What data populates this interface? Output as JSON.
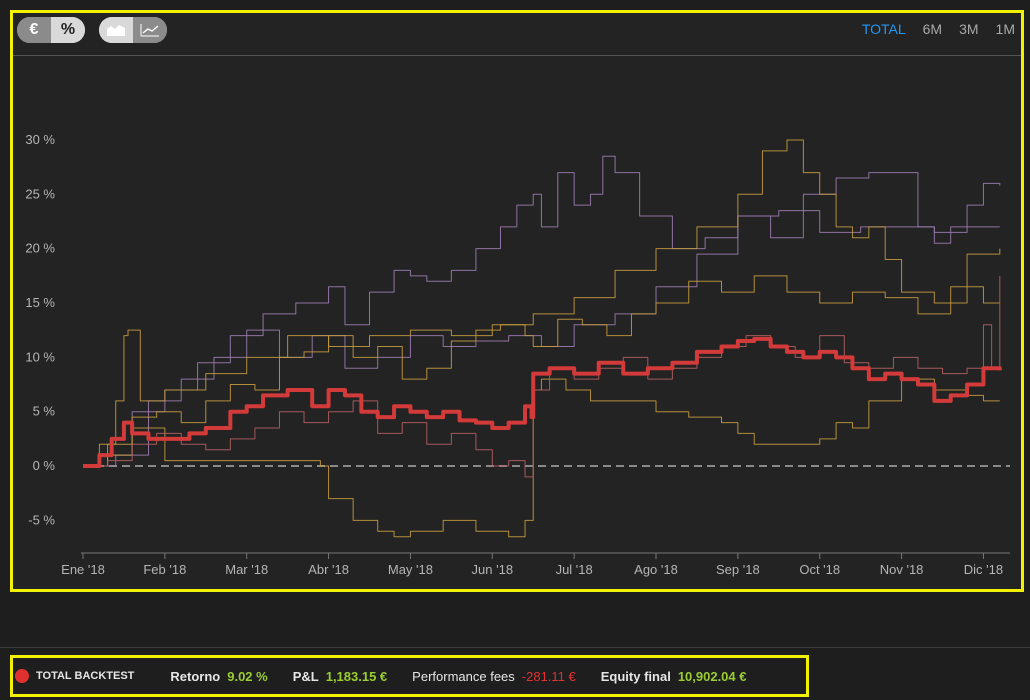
{
  "controls": {
    "unit_options": [
      "€",
      "%"
    ],
    "unit_selected": "%",
    "chart_type_icons": [
      "area-chart-icon",
      "line-chart-icon"
    ],
    "ranges": [
      "TOTAL",
      "6M",
      "3M",
      "1M"
    ],
    "range_selected": "TOTAL"
  },
  "colors": {
    "total": "#d33a3a",
    "purple": "#9c7bb0",
    "gold": "#c49a3e",
    "rose": "#b45f5f",
    "zero_line": "#8a8a8a",
    "accent": "#2196f3",
    "positive": "#9acd32",
    "negative": "#e03131"
  },
  "chart_data": {
    "type": "line",
    "y_unit": "%",
    "ylim": [
      -8,
      38
    ],
    "yticks": [
      -5,
      0,
      5,
      10,
      15,
      20,
      25,
      30
    ],
    "ytick_labels": [
      "-5 %",
      "0 %",
      "5 %",
      "10 %",
      "15 %",
      "20 %",
      "25 %",
      "30 %"
    ],
    "xlim": [
      0,
      11.3
    ],
    "xticks": [
      0,
      1,
      2,
      3,
      4,
      5,
      6,
      7,
      8,
      9,
      10,
      11
    ],
    "xtick_labels": [
      "Ene '18",
      "Feb '18",
      "Mar '18",
      "Abr '18",
      "May '18",
      "Jun '18",
      "Jul '18",
      "Ago '18",
      "Sep '18",
      "Oct '18",
      "Nov '18",
      "Dic '18"
    ],
    "grid": false,
    "series": [
      {
        "name": "TOTAL BACKTEST",
        "color": "#d33a3a",
        "width": 4,
        "x": [
          0,
          0.2,
          0.35,
          0.5,
          0.6,
          0.8,
          1.0,
          1.3,
          1.5,
          1.8,
          2.0,
          2.2,
          2.5,
          2.8,
          3.0,
          3.2,
          3.4,
          3.6,
          3.8,
          4.0,
          4.2,
          4.4,
          4.6,
          4.8,
          5.0,
          5.2,
          5.4,
          5.48,
          5.5,
          5.7,
          6.0,
          6.3,
          6.6,
          6.9,
          7.2,
          7.5,
          7.8,
          8.0,
          8.2,
          8.4,
          8.6,
          8.8,
          9.0,
          9.2,
          9.4,
          9.6,
          9.8,
          10.0,
          10.2,
          10.4,
          10.6,
          10.8,
          11.0,
          11.2
        ],
        "y": [
          0,
          1,
          2.5,
          4,
          3,
          2.5,
          2.5,
          3,
          3.5,
          5,
          5.5,
          6.5,
          7,
          5.5,
          7,
          6.5,
          5,
          4.5,
          5.5,
          5,
          4.5,
          5,
          4.2,
          4,
          3.5,
          4,
          5.5,
          4.5,
          8.5,
          9,
          8.5,
          9.5,
          8.5,
          9,
          9.5,
          10.5,
          11,
          11.5,
          11.7,
          11,
          10.5,
          10,
          10.5,
          10,
          9,
          8,
          8.5,
          8,
          7.5,
          6,
          6.5,
          7.5,
          9,
          8.8
        ]
      },
      {
        "name": "",
        "color": "#9c7bb0",
        "width": 1,
        "x": [
          0,
          0.3,
          0.6,
          1.0,
          1.4,
          1.8,
          2.2,
          2.6,
          3.0,
          3.2,
          3.5,
          3.8,
          4.0,
          4.2,
          4.5,
          4.8,
          5.1,
          5.3,
          5.5,
          5.6,
          5.8,
          6.0,
          6.2,
          6.35,
          6.5,
          6.8,
          7.2,
          7.6,
          8.0,
          8.4,
          8.8,
          9.2,
          9.6,
          10.0,
          10.2,
          10.4,
          10.6,
          10.8,
          11.0,
          11.2
        ],
        "y": [
          0,
          1,
          5,
          7,
          9.5,
          12,
          14,
          15,
          16.5,
          13,
          16,
          18,
          17.5,
          17,
          18,
          20,
          22,
          24,
          25,
          22,
          27,
          24,
          25,
          28.5,
          27,
          23,
          20,
          21,
          23,
          21,
          25,
          26.5,
          27,
          27,
          22,
          20.5,
          22,
          24,
          26,
          25.8
        ]
      },
      {
        "name": "",
        "color": "#9c7bb0",
        "width": 1,
        "x": [
          0,
          0.4,
          0.8,
          1.2,
          1.6,
          2.0,
          2.4,
          2.8,
          3.2,
          3.6,
          4.0,
          4.4,
          4.8,
          5.2,
          5.6,
          6.0,
          6.5,
          7.0,
          7.5,
          8.0,
          8.5,
          9.0,
          9.5,
          10.0,
          10.4,
          10.8,
          11.2
        ],
        "y": [
          0,
          1,
          6,
          8,
          10,
          12.5,
          10,
          12,
          9,
          10,
          12,
          11,
          11.5,
          12,
          11,
          13,
          14,
          16.5,
          19.5,
          23,
          23.5,
          21.5,
          22,
          22,
          21.5,
          22,
          22
        ]
      },
      {
        "name": "",
        "color": "#c49a3e",
        "width": 1,
        "x": [
          0,
          0.2,
          0.4,
          0.5,
          0.55,
          0.7,
          1.0,
          1.5,
          2.0,
          2.5,
          3.0,
          3.5,
          4.0,
          4.5,
          5.0,
          5.5,
          6.0,
          6.5,
          7.0,
          7.5,
          8.0,
          8.3,
          8.6,
          8.8,
          9.0,
          9.2,
          9.4,
          9.6,
          9.8,
          10.0,
          10.4,
          10.8,
          11.2
        ],
        "y": [
          0,
          2,
          6,
          12,
          12.5,
          6,
          7,
          8.5,
          10,
          12,
          11,
          12,
          12.5,
          12,
          13,
          14,
          15.5,
          18,
          20,
          22,
          25,
          29,
          30,
          27,
          25,
          22,
          21,
          22,
          19,
          16,
          15,
          19.5,
          20
        ]
      },
      {
        "name": "",
        "color": "#c49a3e",
        "width": 1,
        "x": [
          0,
          0.3,
          0.6,
          1.0,
          1.4,
          1.8,
          2.2,
          2.6,
          2.9,
          3.0,
          3.3,
          3.6,
          3.8,
          4.0,
          4.4,
          4.8,
          5.2,
          5.4,
          5.5,
          5.6,
          5.9,
          6.2,
          6.6,
          7.0,
          7.4,
          7.8,
          8.0,
          8.2,
          8.6,
          9.0,
          9.2,
          9.4,
          9.6,
          10.0,
          10.4,
          10.8,
          11.0,
          11.2
        ],
        "y": [
          0,
          1,
          3.5,
          0.5,
          0.5,
          0.5,
          0.5,
          0.5,
          0,
          -3,
          -5,
          -6,
          -6.5,
          -6,
          -5,
          -6,
          -6.5,
          -5,
          7,
          8,
          7,
          6,
          6,
          5,
          4.5,
          4,
          3,
          2,
          2,
          2.5,
          4,
          3.5,
          6,
          8,
          7,
          6.5,
          6,
          6
        ]
      },
      {
        "name": "",
        "color": "#c49a3e",
        "width": 1,
        "x": [
          0,
          0.3,
          0.6,
          0.9,
          1.2,
          1.5,
          1.8,
          2.1,
          2.4,
          2.7,
          3.0,
          3.3,
          3.6,
          3.9,
          4.2,
          4.5,
          4.8,
          5.1,
          5.4,
          5.5,
          5.8,
          6.1,
          6.4,
          6.7,
          7.0,
          7.4,
          7.8,
          8.2,
          8.6,
          9.0,
          9.4,
          9.8,
          10.2,
          10.6,
          11.0,
          11.2
        ],
        "y": [
          0,
          2,
          4.5,
          5,
          4,
          6,
          7.5,
          7,
          10,
          10.5,
          12,
          10,
          11,
          8,
          9,
          11.5,
          12.5,
          13,
          12,
          11,
          13.5,
          13,
          12,
          14,
          15,
          17,
          16,
          17.5,
          16,
          15,
          16,
          15.5,
          14,
          16.5,
          15,
          15
        ]
      },
      {
        "name": "",
        "color": "#b45f5f",
        "width": 1,
        "x": [
          0,
          0.3,
          0.6,
          0.9,
          1.2,
          1.5,
          1.8,
          2.1,
          2.4,
          2.7,
          3.0,
          3.3,
          3.6,
          3.9,
          4.2,
          4.5,
          4.8,
          5.0,
          5.2,
          5.4,
          5.5,
          5.7,
          6.0,
          6.3,
          6.6,
          6.9,
          7.2,
          7.5,
          7.8,
          8.1,
          8.4,
          8.7,
          9.0,
          9.3,
          9.6,
          9.9,
          10.2,
          10.5,
          10.8,
          11.0,
          11.1,
          11.2
        ],
        "y": [
          0,
          0.5,
          2,
          3,
          2,
          1.5,
          2.5,
          3.5,
          5,
          4,
          5,
          6,
          3,
          4,
          2,
          3,
          1.5,
          0,
          0.5,
          -1,
          7,
          9,
          8,
          9,
          10,
          8,
          9,
          10,
          11,
          12,
          11,
          10,
          12,
          9.5,
          9,
          10,
          9,
          8.5,
          9,
          13,
          9,
          17.5
        ]
      }
    ]
  },
  "summary": {
    "name": "TOTAL BACKTEST",
    "retorno_label": "Retorno",
    "retorno_value": "9.02 %",
    "pl_label": "P&L",
    "pl_value": "1,183.15 €",
    "fees_label": "Performance fees",
    "fees_value": "-281.11 €",
    "equity_label": "Equity final",
    "equity_value": "10,902.04 €"
  }
}
